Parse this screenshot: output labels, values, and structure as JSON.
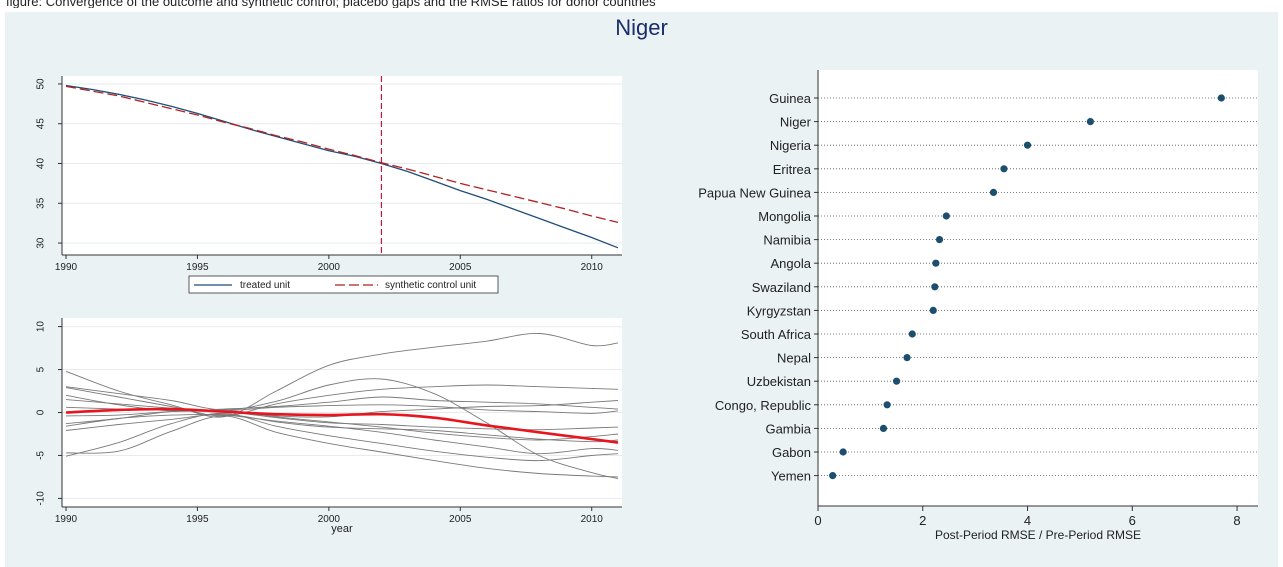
{
  "page_title": "Niger",
  "clipped_caption": "figure: Convergence of the outcome and synthetic control; placebo gaps and the RMSE ratios for donor countries",
  "colors": {
    "panel_bg": "#eaf2f3",
    "title": "#1b2d6b",
    "treated": "#1f4e79",
    "synthetic": "#b22222",
    "dot": "#1d4e6e",
    "gap_highlight": "#e8141e",
    "placebo": "#7a7a7a"
  },
  "chart_data": [
    {
      "id": "trend",
      "type": "line",
      "x": [
        1990,
        1991,
        1992,
        1993,
        1994,
        1995,
        1996,
        1997,
        1998,
        1999,
        2000,
        2001,
        2002,
        2003,
        2004,
        2005,
        2006,
        2007,
        2008,
        2009,
        2010,
        2011
      ],
      "series": [
        {
          "name": "treated unit",
          "values": [
            49.8,
            49.3,
            48.7,
            48.0,
            47.2,
            46.3,
            45.3,
            44.3,
            43.4,
            42.5,
            41.6,
            40.9,
            40.0,
            39.0,
            37.8,
            36.6,
            35.5,
            34.3,
            33.1,
            31.9,
            30.7,
            29.4
          ]
        },
        {
          "name": "synthetic control unit",
          "values": [
            49.7,
            49.1,
            48.5,
            47.7,
            46.9,
            46.1,
            45.2,
            44.4,
            43.5,
            42.7,
            41.8,
            41.0,
            40.1,
            39.3,
            38.4,
            37.5,
            36.7,
            35.9,
            35.1,
            34.3,
            33.4,
            32.6
          ]
        }
      ],
      "xticks": [
        "1990",
        "1995",
        "2000",
        "2005",
        "2010"
      ],
      "yticks": [
        "30",
        "35",
        "40",
        "45",
        "50"
      ],
      "xlim": [
        1990,
        2011
      ],
      "ylim": [
        28.5,
        51
      ],
      "vline": 2002,
      "legend_position": "bottom"
    },
    {
      "id": "gaps",
      "type": "line",
      "x": [
        1990,
        1992,
        1994,
        1996,
        1998,
        2000,
        2002,
        2004,
        2006,
        2008,
        2010,
        2011
      ],
      "highlight": [
        0.0,
        0.3,
        0.4,
        0.1,
        -0.2,
        -0.3,
        -0.2,
        -0.6,
        -1.5,
        -2.3,
        -3.1,
        -3.5
      ],
      "placebos": [
        [
          4.8,
          2.5,
          0.9,
          -0.5,
          2.5,
          5.5,
          6.8,
          7.6,
          8.3,
          9.2,
          7.8,
          8.1
        ],
        [
          3.0,
          2.2,
          1.4,
          0.3,
          1.3,
          3.2,
          3.9,
          2.2,
          -1.2,
          -5.0,
          -7.0,
          -7.7
        ],
        [
          2.9,
          1.8,
          0.7,
          -0.4,
          1.0,
          2.0,
          2.7,
          3.0,
          3.2,
          3.0,
          2.8,
          2.7
        ],
        [
          2.0,
          0.9,
          0.2,
          0.4,
          0.7,
          1.2,
          1.8,
          1.4,
          1.2,
          1.0,
          0.6,
          0.4
        ],
        [
          1.5,
          1.0,
          0.5,
          0.1,
          -0.4,
          -0.5,
          0.1,
          0.4,
          0.7,
          0.8,
          1.2,
          1.4
        ],
        [
          -1.3,
          -0.7,
          0.1,
          0.2,
          -0.5,
          -1.1,
          -1.7,
          -2.4,
          -2.9,
          -3.2,
          -2.8,
          -2.5
        ],
        [
          -1.6,
          -0.7,
          -0.3,
          -0.3,
          -1.0,
          -1.6,
          -2.3,
          -3.2,
          -4.0,
          -4.8,
          -4.2,
          -4.4
        ],
        [
          -5.1,
          -3.5,
          -1.3,
          -0.1,
          -1.6,
          -2.7,
          -3.6,
          -4.5,
          -5.2,
          -5.6,
          -5.0,
          -4.8
        ],
        [
          -4.7,
          -4.5,
          -2.2,
          -0.4,
          -2.3,
          -3.6,
          -4.6,
          -5.6,
          -6.5,
          -7.1,
          -7.4,
          -7.5
        ],
        [
          -2.1,
          -1.4,
          -0.8,
          -0.2,
          -1.1,
          -1.7,
          -1.9,
          -2.1,
          -2.6,
          -3.1,
          -3.4,
          -3.2
        ],
        [
          0.6,
          0.4,
          0.3,
          0.1,
          -0.6,
          -1.2,
          -1.4,
          -1.7,
          -1.9,
          -2.0,
          -1.8,
          -1.7
        ],
        [
          -0.4,
          -0.3,
          0.1,
          0.2,
          0.6,
          0.8,
          0.9,
          0.7,
          0.3,
          0.1,
          -0.1,
          0.2
        ]
      ],
      "xticks": [
        "1990",
        "1995",
        "2000",
        "2005",
        "2010"
      ],
      "yticks": [
        "-10",
        "-5",
        "0",
        "5",
        "10"
      ],
      "xlim": [
        1990,
        2011
      ],
      "ylim": [
        -11,
        11
      ],
      "xlabel": "year"
    },
    {
      "id": "ranking",
      "type": "scatter",
      "categories": [
        "Guinea",
        "Niger",
        "Nigeria",
        "Eritrea",
        "Papua New Guinea",
        "Mongolia",
        "Namibia",
        "Angola",
        "Swaziland",
        "Kyrgyzstan",
        "South Africa",
        "Nepal",
        "Uzbekistan",
        "Congo, Republic",
        "Gambia",
        "Gabon",
        "Yemen"
      ],
      "values": [
        7.7,
        5.2,
        4.0,
        3.55,
        3.35,
        2.45,
        2.32,
        2.25,
        2.23,
        2.2,
        1.8,
        1.7,
        1.5,
        1.32,
        1.25,
        0.48,
        0.28
      ],
      "xticks": [
        "0",
        "2",
        "4",
        "6",
        "8"
      ],
      "xlim": [
        0,
        8.4
      ],
      "xlabel": "Post-Period RMSE / Pre-Period RMSE"
    }
  ]
}
